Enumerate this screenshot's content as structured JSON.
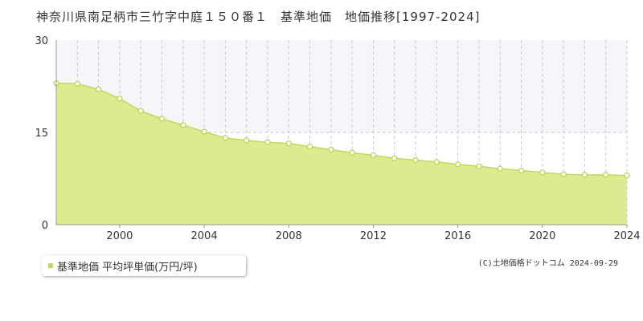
{
  "title": "神奈川県南足柄市三竹字中庭１５０番１　基準地価　地価推移[1997-2024]",
  "legend": {
    "label": "基準地価 平均坪単価(万円/坪)"
  },
  "credit": "(C)土地価格ドットコム 2024-09-29",
  "colors": {
    "fill": "#dceb8f",
    "line": "#c2da5a",
    "marker_fill": "#ffffff",
    "marker_stroke": "#b8d24a",
    "band": "#f7f5fa",
    "grid": "#cccccc",
    "axis": "#999999"
  },
  "chart_data": {
    "type": "area",
    "x": [
      1997,
      1998,
      1999,
      2000,
      2001,
      2002,
      2003,
      2004,
      2005,
      2006,
      2007,
      2008,
      2009,
      2010,
      2011,
      2012,
      2013,
      2014,
      2015,
      2016,
      2017,
      2018,
      2019,
      2020,
      2021,
      2022,
      2023,
      2024
    ],
    "series": [
      {
        "name": "基準地価 平均坪単価(万円/坪)",
        "values": [
          23.0,
          22.9,
          22.0,
          20.5,
          18.5,
          17.2,
          16.2,
          15.1,
          14.1,
          13.7,
          13.4,
          13.2,
          12.7,
          12.2,
          11.7,
          11.3,
          10.8,
          10.5,
          10.2,
          9.8,
          9.5,
          9.1,
          8.8,
          8.5,
          8.2,
          8.1,
          8.1,
          8.0
        ]
      }
    ],
    "xticks": [
      "2000",
      "2004",
      "2008",
      "2012",
      "2016",
      "2020",
      "2024"
    ],
    "yticks": [
      "0",
      "15",
      "30"
    ],
    "xlim": [
      1997,
      2024
    ],
    "ylim": [
      0,
      30
    ],
    "grid": true,
    "legend_position": "bottom-left"
  }
}
